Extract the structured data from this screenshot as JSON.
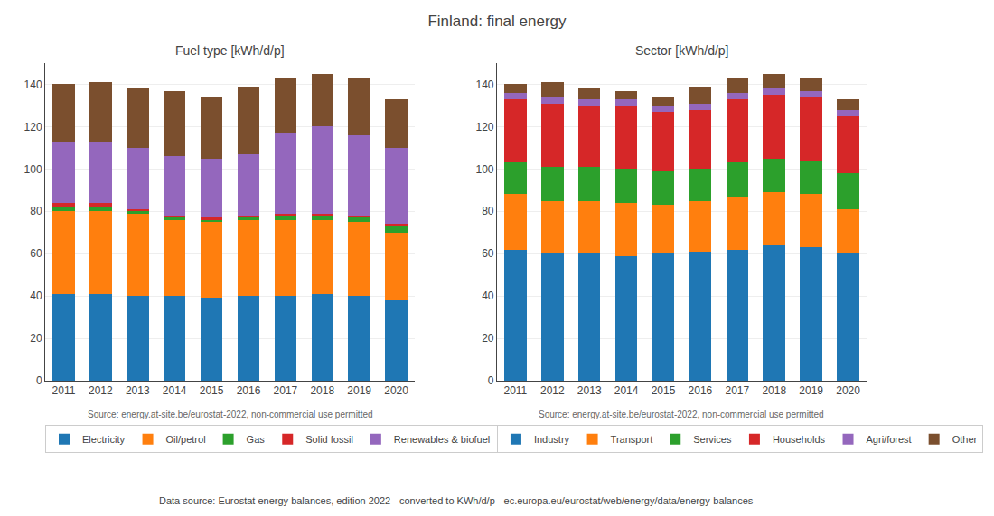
{
  "title": "Finland: final energy",
  "annotations": [
    "Data source: Eurostat energy balances, edition 2022 - converted to KWh/d/p - ec.europa.eu/eurostat/web/energy/data/energy-balances"
  ],
  "chart_data": [
    {
      "type": "bar",
      "stacked": true,
      "grid": true,
      "title": "Fuel type [kWh/d/p]",
      "categories": [
        "2011",
        "2012",
        "2013",
        "2014",
        "2015",
        "2016",
        "2017",
        "2018",
        "2019",
        "2020"
      ],
      "series": [
        {
          "name": "Electricity",
          "color": "#1f77b4",
          "values": [
            41,
            41,
            40,
            40,
            39,
            40,
            40,
            41,
            40,
            38
          ]
        },
        {
          "name": "Oil/petrol",
          "color": "#ff7f0e",
          "values": [
            39,
            39,
            39,
            36,
            36,
            36,
            36,
            35,
            35,
            32
          ]
        },
        {
          "name": "Gas",
          "color": "#2ca02c",
          "values": [
            2,
            2,
            1,
            1,
            1,
            1,
            2,
            2,
            2,
            3
          ]
        },
        {
          "name": "Solid fossil",
          "color": "#d62728",
          "values": [
            2,
            2,
            1,
            1,
            1,
            1,
            1,
            1,
            1,
            1
          ]
        },
        {
          "name": "Renewables & biofuel",
          "color": "#9467bd",
          "values": [
            29,
            29,
            29,
            28,
            28,
            29,
            38,
            41,
            38,
            36
          ]
        },
        {
          "name": "Other",
          "color": "#7b4f2e",
          "values": [
            27,
            28,
            28,
            31,
            29,
            32,
            26,
            25,
            27,
            23
          ]
        }
      ],
      "ylim": [
        0,
        150
      ],
      "yticks": [
        0,
        20,
        40,
        60,
        80,
        100,
        120,
        140
      ],
      "annotations": [
        "Source: energy.at-site.be/eurostat-2022, non-commercial use permitted"
      ]
    },
    {
      "type": "bar",
      "stacked": true,
      "grid": true,
      "title": "Sector [kWh/d/p]",
      "categories": [
        "2011",
        "2012",
        "2013",
        "2014",
        "2015",
        "2016",
        "2017",
        "2018",
        "2019",
        "2020"
      ],
      "series": [
        {
          "name": "Industry",
          "color": "#1f77b4",
          "values": [
            62,
            60,
            60,
            59,
            60,
            61,
            62,
            64,
            63,
            60
          ]
        },
        {
          "name": "Transport",
          "color": "#ff7f0e",
          "values": [
            26,
            25,
            25,
            25,
            23,
            24,
            25,
            25,
            25,
            21
          ]
        },
        {
          "name": "Services",
          "color": "#2ca02c",
          "values": [
            15,
            16,
            16,
            16,
            16,
            15,
            16,
            16,
            16,
            17
          ]
        },
        {
          "name": "Households",
          "color": "#d62728",
          "values": [
            30,
            30,
            29,
            30,
            28,
            28,
            30,
            30,
            30,
            27
          ]
        },
        {
          "name": "Agri/forest",
          "color": "#9467bd",
          "values": [
            3,
            3,
            3,
            3,
            3,
            3,
            3,
            3,
            3,
            3
          ]
        },
        {
          "name": "Other",
          "color": "#7b4f2e",
          "values": [
            4,
            7,
            5,
            4,
            4,
            8,
            7,
            7,
            6,
            5
          ]
        }
      ],
      "ylim": [
        0,
        150
      ],
      "yticks": [
        0,
        20,
        40,
        60,
        80,
        100,
        120,
        140
      ],
      "annotations": [
        "Source: energy.at-site.be/eurostat-2022, non-commercial use permitted"
      ]
    }
  ]
}
